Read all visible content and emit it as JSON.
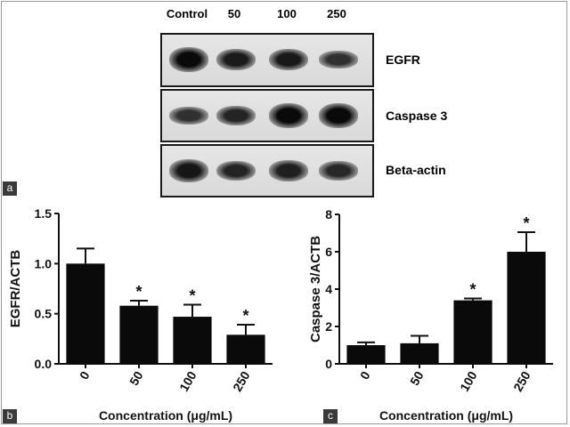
{
  "western_blot": {
    "lanes": [
      "Control",
      "50",
      "100",
      "250"
    ],
    "rows": [
      {
        "label": "EGFR",
        "band_intensity": [
          1.0,
          0.8,
          0.82,
          0.55
        ]
      },
      {
        "label": "Caspase 3",
        "band_intensity": [
          0.55,
          0.7,
          1.0,
          1.0
        ]
      },
      {
        "label": "Beta-actin",
        "band_intensity": [
          0.85,
          0.7,
          0.75,
          0.65
        ]
      }
    ],
    "panel_tag": "a"
  },
  "chart_data": [
    {
      "type": "bar",
      "panel_tag": "b",
      "categories": [
        "0",
        "50",
        "100",
        "250"
      ],
      "values": [
        1.0,
        0.58,
        0.47,
        0.29
      ],
      "errors": [
        0.15,
        0.05,
        0.12,
        0.1
      ],
      "significance": [
        "",
        "*",
        "*",
        "*"
      ],
      "xlabel": "Concentration (μg/mL)",
      "ylabel": "EGFR/ACTB",
      "ylim": [
        0,
        1.5
      ],
      "yticks": [
        "0.0",
        "0.5",
        "1.0",
        "1.5"
      ],
      "bar_color": "#0a0a0a"
    },
    {
      "type": "bar",
      "panel_tag": "c",
      "categories": [
        "0",
        "50",
        "100",
        "250"
      ],
      "values": [
        1.0,
        1.1,
        3.4,
        6.0
      ],
      "errors": [
        0.15,
        0.4,
        0.1,
        1.05
      ],
      "significance": [
        "",
        "",
        "*",
        "*"
      ],
      "xlabel": "Concentration (μg/mL)",
      "ylabel": "Caspase 3/ACTB",
      "ylim": [
        0,
        8
      ],
      "yticks": [
        "0",
        "2",
        "4",
        "6",
        "8"
      ],
      "bar_color": "#0a0a0a"
    }
  ]
}
